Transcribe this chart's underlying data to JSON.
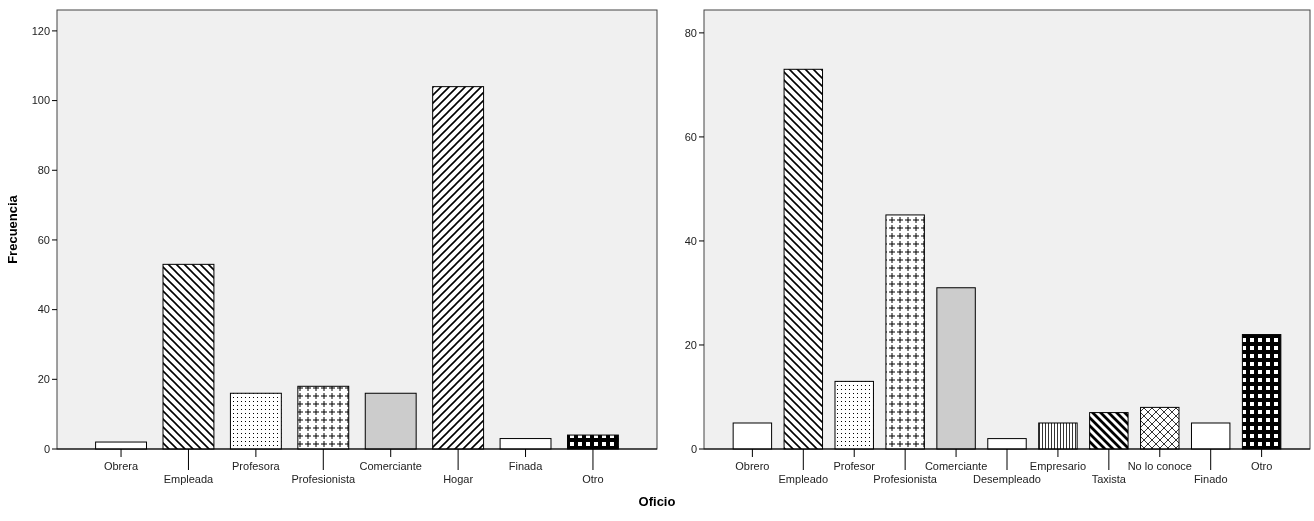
{
  "chart_data": [
    {
      "type": "bar",
      "ylabel": "Frecuencia",
      "xlabel": "Oficio",
      "categories": [
        "Obrera",
        "Empleada",
        "Profesora",
        "Profesionista",
        "Comerciante",
        "Hogar",
        "Finada",
        "Otro"
      ],
      "values": [
        2,
        53,
        16,
        18,
        16,
        104,
        3,
        4
      ],
      "colors": [
        "#ffffff",
        "#000000",
        "#000000",
        "#000000",
        "#cccccc",
        "#000000",
        "#ffffff",
        "#000000"
      ],
      "ylim": [
        0,
        126
      ],
      "yticks": [
        0,
        20,
        40,
        60,
        80,
        100,
        120
      ],
      "grid": false
    },
    {
      "type": "bar",
      "categories": [
        "Obrero",
        "Empleado",
        "Profesor",
        "Profesionista",
        "Comerciante",
        "Desempleado",
        "Empresario",
        "Taxista",
        "No lo conoce",
        "Finado",
        "Otro"
      ],
      "values": [
        5,
        73,
        13,
        45,
        31,
        2,
        5,
        7,
        8,
        5,
        22
      ],
      "colors": [
        "#ffffff",
        "#000000",
        "#000000",
        "#000000",
        "#cccccc",
        "#ffffff",
        "#000000",
        "#000000",
        "#000000",
        "#ffffff",
        "#000000"
      ],
      "ylim": [
        0,
        84.4
      ],
      "yticks": [
        0,
        20,
        40,
        60,
        80
      ],
      "grid": false
    }
  ]
}
